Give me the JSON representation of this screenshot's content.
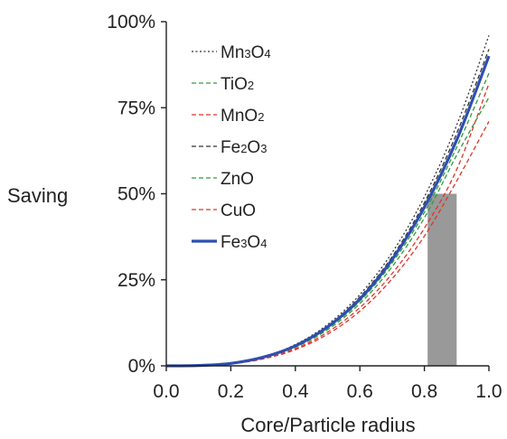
{
  "chart_data": {
    "type": "line",
    "title": "",
    "xlabel": "Core/Particle radius",
    "ylabel": "Saving",
    "xlim": [
      0,
      1
    ],
    "ylim": [
      0,
      100
    ],
    "x_ticks": [
      "0.0",
      "0.2",
      "0.4",
      "0.6",
      "0.8",
      "1.0"
    ],
    "y_ticks": [
      "0%",
      "25%",
      "50%",
      "75%",
      "100%"
    ],
    "grid": false,
    "legend_position": "top-left",
    "x": [
      0.0,
      0.1,
      0.2,
      0.3,
      0.4,
      0.5,
      0.6,
      0.7,
      0.8,
      0.9,
      1.0
    ],
    "series": [
      {
        "name": "Mn3O4",
        "label_parts": [
          [
            "Mn",
            false
          ],
          [
            "3",
            true
          ],
          [
            "O",
            false
          ],
          [
            "4",
            true
          ]
        ],
        "color": "#333333",
        "dash": "dotted",
        "values": [
          0,
          0.1,
          0.8,
          2.6,
          6.2,
          12.0,
          20.7,
          32.9,
          49.1,
          69.9,
          96.0
        ]
      },
      {
        "name": "TiO2",
        "label_parts": [
          [
            "TiO",
            false
          ],
          [
            "2",
            true
          ]
        ],
        "color": "#2e9e3c",
        "dash": "dashed",
        "values": [
          0,
          0.1,
          0.7,
          2.3,
          5.4,
          10.5,
          18.1,
          28.8,
          43.0,
          61.2,
          78.0
        ]
      },
      {
        "name": "MnO2",
        "label_parts": [
          [
            "MnO",
            false
          ],
          [
            "2",
            true
          ]
        ],
        "color": "#e0342a",
        "dash": "dashed",
        "values": [
          0,
          0.1,
          0.6,
          2.0,
          4.7,
          9.2,
          15.9,
          25.3,
          37.7,
          53.7,
          71.0
        ]
      },
      {
        "name": "Fe2O3",
        "label_parts": [
          [
            "Fe",
            false
          ],
          [
            "2",
            true
          ],
          [
            "O",
            false
          ],
          [
            "3",
            true
          ]
        ],
        "color": "#333333",
        "dash": "dashed",
        "values": [
          0,
          0.1,
          0.7,
          2.5,
          5.9,
          11.6,
          20.0,
          31.7,
          47.4,
          67.5,
          92.0
        ]
      },
      {
        "name": "ZnO",
        "label_parts": [
          [
            "ZnO",
            false
          ]
        ],
        "color": "#2e9e3c",
        "dash": "dashed",
        "values": [
          0,
          0.1,
          0.7,
          2.4,
          5.6,
          10.9,
          18.8,
          29.9,
          44.6,
          63.5,
          85.0
        ]
      },
      {
        "name": "CuO",
        "label_parts": [
          [
            "CuO",
            false
          ]
        ],
        "color": "#e0342a",
        "dash": "dashed",
        "values": [
          0,
          0.1,
          0.6,
          2.1,
          5.0,
          9.8,
          16.9,
          26.8,
          40.0,
          57.0,
          82.0
        ]
      },
      {
        "name": "Fe3O4",
        "label_parts": [
          [
            "Fe",
            false
          ],
          [
            "3",
            true
          ],
          [
            "O",
            false
          ],
          [
            "4",
            true
          ]
        ],
        "color": "#2e4fb0",
        "dash": "solid",
        "values": [
          0,
          0.1,
          0.7,
          2.5,
          5.8,
          11.3,
          19.4,
          30.9,
          46.1,
          65.6,
          90.0
        ]
      }
    ],
    "highlight_region": {
      "x_range": [
        0.81,
        0.9
      ],
      "y_range": [
        0,
        50
      ],
      "color": "#999999"
    }
  }
}
